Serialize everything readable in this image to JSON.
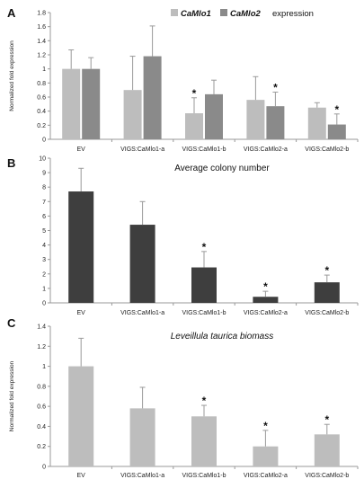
{
  "colors": {
    "series_light": "#bdbdbd",
    "series_mid": "#8a8a8a",
    "series_dark": "#3e3e3e",
    "axis": "#999999",
    "error_bar": "#9a9a9a"
  },
  "chart_data": [
    {
      "panel": "A",
      "type": "bar",
      "title": "",
      "legend": {
        "items": [
          "CaMlo1",
          "CaMlo2"
        ],
        "suffix": "expression",
        "placement": "top-right"
      },
      "ylabel": "Normalized fold expression",
      "xlabel": "",
      "ylim": [
        0,
        1.8
      ],
      "yticks": [
        "0",
        "0.2",
        "0.4",
        "0.6",
        "0.8",
        "1",
        "1.2",
        "1.4",
        "1.6",
        "1.8"
      ],
      "categories": [
        "EV",
        "VIGS:CaMlo1-a",
        "VIGS:CaMlo1-b",
        "VIGS:CaMlo2-a",
        "VIGS:CaMlo2-b"
      ],
      "series": [
        {
          "name": "CaMlo1",
          "values": [
            1.0,
            0.7,
            0.37,
            0.56,
            0.45
          ],
          "errors": [
            0.27,
            0.48,
            0.22,
            0.33,
            0.07
          ],
          "stars": [
            false,
            false,
            true,
            false,
            false
          ]
        },
        {
          "name": "CaMlo2",
          "values": [
            1.0,
            1.18,
            0.64,
            0.47,
            0.21
          ],
          "errors": [
            0.16,
            0.43,
            0.2,
            0.2,
            0.15
          ],
          "stars": [
            false,
            false,
            false,
            true,
            true
          ]
        }
      ],
      "star_symbol": "*",
      "grid": false
    },
    {
      "panel": "B",
      "type": "bar",
      "title": "Average colony number",
      "ylabel": "",
      "xlabel": "",
      "ylim": [
        0,
        10
      ],
      "yticks": [
        "0",
        "1",
        "2",
        "3",
        "4",
        "5",
        "6",
        "7",
        "8",
        "9",
        "10"
      ],
      "categories": [
        "EV",
        "VIGS:CaMlo1-a",
        "VIGS:CaMlo1-b",
        "VIGS:CaMlo2-a",
        "VIGS:CaMlo2-b"
      ],
      "values": [
        7.7,
        5.4,
        2.45,
        0.42,
        1.42
      ],
      "errors": [
        1.6,
        1.6,
        1.1,
        0.38,
        0.5
      ],
      "stars": [
        false,
        false,
        true,
        true,
        true
      ],
      "star_symbol": "*",
      "grid": false
    },
    {
      "panel": "C",
      "type": "bar",
      "title": "Leveillula taurica biomass",
      "ylabel": "Normalized fold expression",
      "xlabel": "",
      "ylim": [
        0,
        1.4
      ],
      "yticks": [
        "0",
        "0.2",
        "0.4",
        "0.6",
        "0.8",
        "1",
        "1.2",
        "1.4"
      ],
      "categories": [
        "EV",
        "VIGS:CaMlo1-a",
        "VIGS:CaMlo1-b",
        "VIGS:CaMlo2-a",
        "VIGS:CaMlo2-b"
      ],
      "values": [
        1.0,
        0.58,
        0.5,
        0.2,
        0.32
      ],
      "errors": [
        0.28,
        0.21,
        0.11,
        0.16,
        0.1
      ],
      "stars": [
        false,
        false,
        true,
        true,
        true
      ],
      "star_symbol": "*",
      "grid": false
    }
  ]
}
